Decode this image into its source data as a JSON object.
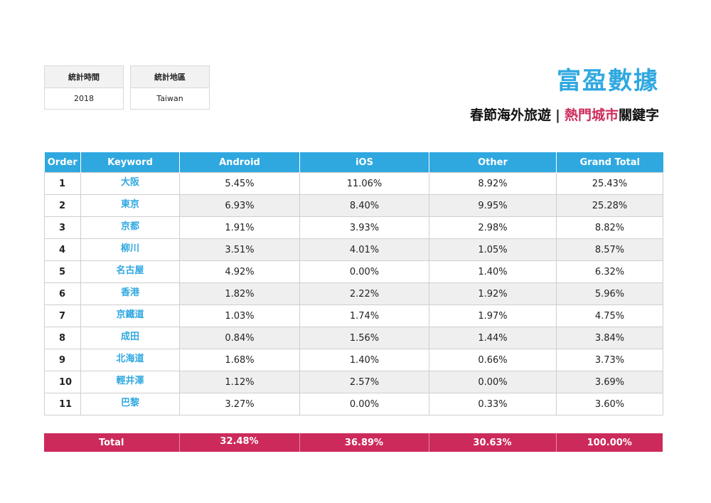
{
  "info": {
    "time": {
      "label": "統計時間",
      "value": "2018"
    },
    "region": {
      "label": "統計地區",
      "value": "Taiwan"
    }
  },
  "brand": "富盈數據",
  "subtitle": {
    "part1": "春節海外旅遊",
    "separator": "|",
    "highlight": "熱門城市",
    "part2": "關鍵字"
  },
  "colors": {
    "header_blue": "#2fa8e0",
    "total_pink": "#cc2a5a",
    "row_alt": "#efefef"
  },
  "table": {
    "headers": [
      "Order",
      "Keyword",
      "Android",
      "iOS",
      "Other",
      "Grand Total"
    ],
    "rows": [
      {
        "order": "1",
        "keyword": "大阪",
        "android": "5.45%",
        "ios": "11.06%",
        "other": "8.92%",
        "total": "25.43%"
      },
      {
        "order": "2",
        "keyword": "東京",
        "android": "6.93%",
        "ios": "8.40%",
        "other": "9.95%",
        "total": "25.28%"
      },
      {
        "order": "3",
        "keyword": "京都",
        "android": "1.91%",
        "ios": "3.93%",
        "other": "2.98%",
        "total": "8.82%"
      },
      {
        "order": "4",
        "keyword": "柳川",
        "android": "3.51%",
        "ios": "4.01%",
        "other": "1.05%",
        "total": "8.57%"
      },
      {
        "order": "5",
        "keyword": "名古屋",
        "android": "4.92%",
        "ios": "0.00%",
        "other": "1.40%",
        "total": "6.32%"
      },
      {
        "order": "6",
        "keyword": "香港",
        "android": "1.82%",
        "ios": "2.22%",
        "other": "1.92%",
        "total": "5.96%"
      },
      {
        "order": "7",
        "keyword": "京鐵道",
        "android": "1.03%",
        "ios": "1.74%",
        "other": "1.97%",
        "total": "4.75%"
      },
      {
        "order": "8",
        "keyword": "成田",
        "android": "0.84%",
        "ios": "1.56%",
        "other": "1.44%",
        "total": "3.84%"
      },
      {
        "order": "9",
        "keyword": "北海道",
        "android": "1.68%",
        "ios": "1.40%",
        "other": "0.66%",
        "total": "3.73%"
      },
      {
        "order": "10",
        "keyword": "輕井澤",
        "android": "1.12%",
        "ios": "2.57%",
        "other": "0.00%",
        "total": "3.69%"
      },
      {
        "order": "11",
        "keyword": "巴黎",
        "android": "3.27%",
        "ios": "0.00%",
        "other": "0.33%",
        "total": "3.60%"
      }
    ],
    "totals": {
      "label": "Total",
      "android": "32.48%",
      "ios": "36.89%",
      "other": "30.63%",
      "total": "100.00%"
    }
  }
}
